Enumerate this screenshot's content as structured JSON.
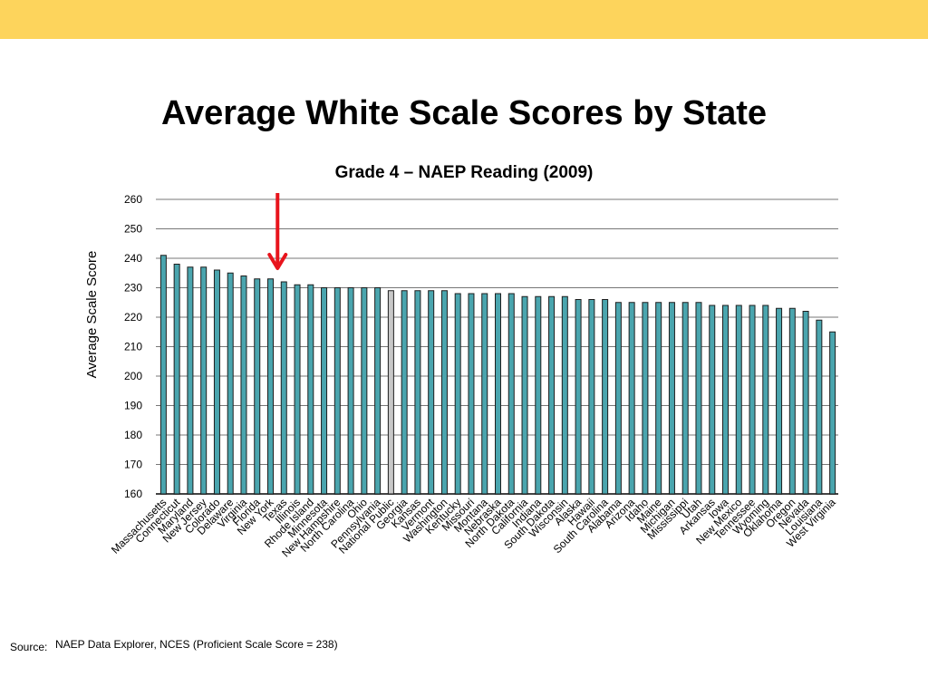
{
  "slide": {
    "title": "Average White Scale Scores by State",
    "banner_color": "#fdd45c"
  },
  "source": {
    "label": "Source:",
    "text": "NAEP Data Explorer, NCES (Proficient Scale Score = 238)"
  },
  "chart_data": {
    "type": "bar",
    "title": "Grade 4 – NAEP Reading (2009)",
    "xlabel": "",
    "ylabel": "Average Scale Score",
    "ylim": [
      160,
      260
    ],
    "yticks": [
      160,
      170,
      180,
      190,
      200,
      210,
      220,
      230,
      240,
      250,
      260
    ],
    "grid": true,
    "bar_color": "#4aa5ae",
    "highlight_color": "#c8c8c8",
    "highlight_category": "National Public",
    "arrow_color": "#e8141c",
    "arrow_target": "Texas",
    "categories": [
      "Massachusetts",
      "Connecticut",
      "Maryland",
      "New Jersey",
      "Colorado",
      "Delaware",
      "Virginia",
      "Florida",
      "New York",
      "Texas",
      "Illinois",
      "Rhode Island",
      "Minnesota",
      "New Hampshire",
      "North Carolina",
      "Ohio",
      "Pennsylvania",
      "National Public",
      "Georgia",
      "Kansas",
      "Vermont",
      "Washington",
      "Kentucky",
      "Missouri",
      "Montana",
      "Nebraska",
      "North Dakota",
      "California",
      "Indiana",
      "South Dakota",
      "Wisconsin",
      "Alaska",
      "Hawaii",
      "South Carolina",
      "Alabama",
      "Arizona",
      "Idaho",
      "Maine",
      "Michigan",
      "Mississippi",
      "Utah",
      "Arkansas",
      "Iowa",
      "New Mexico",
      "Tennessee",
      "Wyoming",
      "Oklahoma",
      "Oregon",
      "Nevada",
      "Louisiana",
      "West Virginia"
    ],
    "values": [
      241,
      238,
      237,
      237,
      236,
      235,
      234,
      233,
      233,
      232,
      231,
      231,
      230,
      230,
      230,
      230,
      230,
      229,
      229,
      229,
      229,
      229,
      228,
      228,
      228,
      228,
      228,
      227,
      227,
      227,
      227,
      226,
      226,
      226,
      225,
      225,
      225,
      225,
      225,
      225,
      225,
      224,
      224,
      224,
      224,
      224,
      223,
      223,
      222,
      219,
      215
    ]
  }
}
